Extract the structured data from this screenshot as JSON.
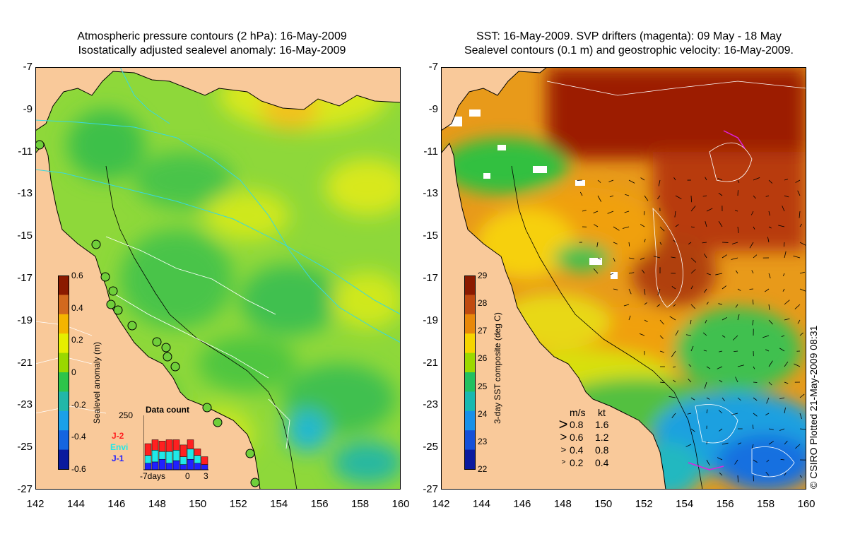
{
  "left_panel": {
    "title_line1": "Atmospheric pressure contours (2 hPa): 16-May-2009",
    "title_line2": "Isostatically adjusted sealevel anomaly: 16-May-2009",
    "colorbar": {
      "label": "Sealevel anomaly (m)",
      "ticks": [
        "0.6",
        "0.4",
        "0.2",
        "0",
        "-0.2",
        "-0.4",
        "-0.6"
      ],
      "colors": [
        "#8b1a00",
        "#d2691e",
        "#f4b400",
        "#e6ee00",
        "#9ad800",
        "#2ec44a",
        "#22b7a8",
        "#1aa0e8",
        "#1565e0",
        "#0a1a9e"
      ]
    },
    "inset": {
      "title": "Data count",
      "ymax": "250",
      "x_labels": [
        "-7days",
        "0",
        "3"
      ],
      "legend": [
        {
          "name": "J-2",
          "color": "#ff2020"
        },
        {
          "name": "Envi",
          "color": "#20e8e8"
        },
        {
          "name": "J-1",
          "color": "#2020ff"
        }
      ],
      "bars": [
        {
          "j1": 25,
          "envi": 30,
          "j2": 45
        },
        {
          "j1": 30,
          "envi": 45,
          "j2": 40
        },
        {
          "j1": 40,
          "envi": 30,
          "j2": 40
        },
        {
          "j1": 25,
          "envi": 45,
          "j2": 45
        },
        {
          "j1": 35,
          "envi": 40,
          "j2": 40
        },
        {
          "j1": 20,
          "envi": 30,
          "j2": 45
        },
        {
          "j1": 40,
          "envi": 40,
          "j2": 35
        },
        {
          "j1": 25,
          "envi": 30,
          "j2": 25
        },
        {
          "j1": 20,
          "envi": 0,
          "j2": 30
        }
      ]
    }
  },
  "right_panel": {
    "title_line1": "SST: 16-May-2009. SVP drifters (magenta): 09 May - 18 May",
    "title_line2": "Sealevel contours (0.1 m) and geostrophic velocity: 16-May-2009.",
    "colorbar": {
      "label": "3-day SST composite (deg C)",
      "ticks": [
        "29",
        "28",
        "27",
        "26",
        "25",
        "24",
        "23",
        "22"
      ],
      "colors": [
        "#8b1a00",
        "#c04a10",
        "#e8880a",
        "#f6d400",
        "#9cd800",
        "#22c060",
        "#18b8b0",
        "#1890e8",
        "#1450d8",
        "#0a1a9e"
      ]
    },
    "velocity_legend": {
      "header_ms": "m/s",
      "header_kt": "kt",
      "rows": [
        {
          "ms": "0.8",
          "kt": "1.6"
        },
        {
          "ms": "0.6",
          "kt": "1.2"
        },
        {
          "ms": "0.4",
          "kt": "0.8"
        },
        {
          "ms": "0.2",
          "kt": "0.4"
        }
      ]
    }
  },
  "axes": {
    "y_ticks": [
      "-7",
      "-9",
      "-11",
      "-13",
      "-15",
      "-17",
      "-19",
      "-21",
      "-23",
      "-25",
      "-27"
    ],
    "x_ticks": [
      "142",
      "144",
      "146",
      "148",
      "150",
      "152",
      "154",
      "156",
      "158",
      "160"
    ]
  },
  "credit": "© CSIRO Plotted 21-May-2009 08:31",
  "colors": {
    "land": "#f9c99a",
    "coast": "#000000"
  }
}
